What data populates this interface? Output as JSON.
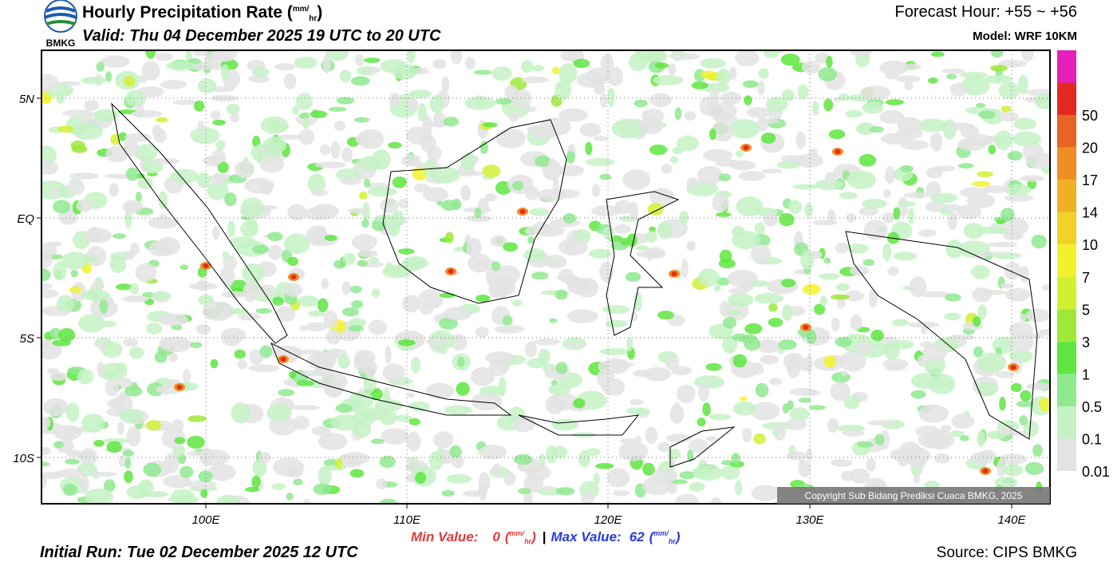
{
  "header": {
    "logo_text": "BMKG",
    "title": "Hourly Precipitation Rate",
    "unit_num": "mm",
    "unit_den": "hr",
    "valid": "Valid: Thu 04 December 2025 19 UTC to 20 UTC",
    "forecast_hour": "Forecast Hour: +55 ~ +56",
    "model": "Model: WRF 10KM"
  },
  "map": {
    "lat_labels": [
      "5N",
      "EQ",
      "5S",
      "10S"
    ],
    "lon_labels": [
      "100E",
      "110E",
      "120E",
      "130E",
      "140E"
    ],
    "copyright": "Copyright Sub Bidang Prediksi Cuaca BMKG, 2025"
  },
  "legend": {
    "labels": [
      "0.01",
      "0.1",
      "0.5",
      "1",
      "3",
      "5",
      "7",
      "10",
      "14",
      "17",
      "20",
      "50"
    ],
    "colors": [
      "#e3e3e3",
      "#c4f2c4",
      "#8fe98f",
      "#5ee640",
      "#9ee83a",
      "#d2f032",
      "#f2f22c",
      "#f2d226",
      "#f0b024",
      "#ee8e24",
      "#e86424",
      "#e42a20",
      "#e420b8"
    ]
  },
  "footer": {
    "min_label": "Min Value:",
    "min_value": "0",
    "max_label": "Max Value:",
    "max_value": "62",
    "unit_num": "mm",
    "unit_den": "hr",
    "initial_run": "Initial Run: Tue 02 December 2025 12 UTC",
    "source": "Source: CIPS BMKG"
  }
}
